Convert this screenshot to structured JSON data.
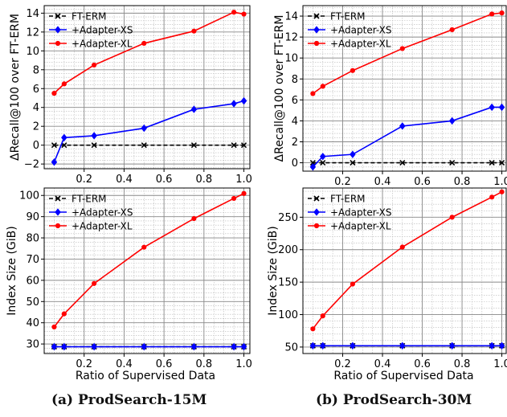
{
  "figure": {
    "captions": [
      "(a) ProdSearch-15M",
      "(b) ProdSearch-30M"
    ],
    "colors": {
      "ft_erm": "#000000",
      "adapter_xs": "#0000ff",
      "adapter_xl": "#ff0000"
    }
  },
  "chart_data": [
    {
      "type": "line",
      "id": "a-top",
      "title": "",
      "xlabel": "",
      "ylabel": "ΔRecall@100 over FT-ERM",
      "xlim": [
        0.0,
        1.03
      ],
      "ylim": [
        -2.5,
        14.8
      ],
      "xticks": [
        0.2,
        0.4,
        0.6,
        0.8,
        1.0
      ],
      "xtick_labels": [
        "0.2",
        "0.4",
        "0.6",
        "0.8",
        "1.0"
      ],
      "yticks": [
        -2,
        0,
        2,
        4,
        6,
        8,
        10,
        12,
        14
      ],
      "ytick_labels": [
        "−2",
        "0",
        "2",
        "4",
        "6",
        "8",
        "10",
        "12",
        "14"
      ],
      "grid": true,
      "legend": "top-left",
      "x": [
        0.05,
        0.1,
        0.25,
        0.5,
        0.75,
        0.95,
        1.0
      ],
      "series": [
        {
          "name": "FT-ERM",
          "color": "#000000",
          "marker": "x",
          "dash": true,
          "values": [
            0,
            0,
            0,
            0,
            0,
            0,
            0
          ]
        },
        {
          "name": "+Adapter-XS",
          "color": "#0000ff",
          "marker": "diamond",
          "dash": false,
          "values": [
            -1.8,
            0.8,
            1.0,
            1.8,
            3.8,
            4.4,
            4.7
          ]
        },
        {
          "name": "+Adapter-XL",
          "color": "#ff0000",
          "marker": "circle",
          "dash": false,
          "values": [
            5.5,
            6.5,
            8.5,
            10.8,
            12.1,
            14.1,
            13.9
          ]
        }
      ]
    },
    {
      "type": "line",
      "id": "b-top",
      "title": "",
      "xlabel": "",
      "ylabel": "ΔRecall@100 over FT-ERM",
      "xlim": [
        0.0,
        1.03
      ],
      "ylim": [
        -0.8,
        15.0
      ],
      "xticks": [
        0.2,
        0.4,
        0.6,
        0.8,
        1.0
      ],
      "xtick_labels": [
        "0.2",
        "0.4",
        "0.6",
        "0.8",
        "1.0"
      ],
      "yticks": [
        0,
        2,
        4,
        6,
        8,
        10,
        12,
        14
      ],
      "ytick_labels": [
        "0",
        "2",
        "4",
        "6",
        "8",
        "10",
        "12",
        "14"
      ],
      "grid": true,
      "legend": "top-left",
      "x": [
        0.05,
        0.1,
        0.25,
        0.5,
        0.75,
        0.95,
        1.0
      ],
      "series": [
        {
          "name": "FT-ERM",
          "color": "#000000",
          "marker": "x",
          "dash": true,
          "values": [
            0,
            0,
            0,
            0,
            0,
            0,
            0
          ]
        },
        {
          "name": "+Adapter-XS",
          "color": "#0000ff",
          "marker": "diamond",
          "dash": false,
          "values": [
            -0.4,
            0.6,
            0.8,
            3.5,
            4.0,
            5.3,
            5.3
          ]
        },
        {
          "name": "+Adapter-XL",
          "color": "#ff0000",
          "marker": "circle",
          "dash": false,
          "values": [
            6.6,
            7.3,
            8.8,
            10.9,
            12.7,
            14.2,
            14.3
          ]
        }
      ]
    },
    {
      "type": "line",
      "id": "a-bottom",
      "title": "",
      "xlabel": "Ratio of Supervised Data",
      "ylabel": "Index Size (GiB)",
      "xlim": [
        0.0,
        1.03
      ],
      "ylim": [
        25.5,
        103.5
      ],
      "xticks": [
        0.2,
        0.4,
        0.6,
        0.8,
        1.0
      ],
      "xtick_labels": [
        "0.2",
        "0.4",
        "0.6",
        "0.8",
        "1.0"
      ],
      "yticks": [
        30,
        40,
        50,
        60,
        70,
        80,
        90,
        100
      ],
      "ytick_labels": [
        "30",
        "40",
        "50",
        "60",
        "70",
        "80",
        "90",
        "100"
      ],
      "grid": true,
      "legend": "top-left",
      "x": [
        0.05,
        0.1,
        0.25,
        0.5,
        0.75,
        0.95,
        1.0
      ],
      "series": [
        {
          "name": "FT-ERM",
          "color": "#000000",
          "marker": "x",
          "dash": true,
          "values": [
            28.7,
            28.7,
            28.7,
            28.7,
            28.7,
            28.7,
            28.7
          ]
        },
        {
          "name": "+Adapter-XS",
          "color": "#0000ff",
          "marker": "diamond",
          "dash": false,
          "values": [
            28.7,
            28.7,
            28.7,
            28.7,
            28.7,
            28.7,
            28.7
          ]
        },
        {
          "name": "+Adapter-XL",
          "color": "#ff0000",
          "marker": "circle",
          "dash": false,
          "values": [
            38.0,
            44.2,
            58.5,
            75.6,
            89.1,
            98.6,
            100.9
          ]
        }
      ]
    },
    {
      "type": "line",
      "id": "b-bottom",
      "title": "",
      "xlabel": "Ratio of Supervised Data",
      "ylabel": "Index Size (GiB)",
      "xlim": [
        0.0,
        1.03
      ],
      "ylim": [
        40,
        295
      ],
      "xticks": [
        0.2,
        0.4,
        0.6,
        0.8,
        1.0
      ],
      "xtick_labels": [
        "0.2",
        "0.4",
        "0.6",
        "0.8",
        "1.0"
      ],
      "yticks": [
        50,
        100,
        150,
        200,
        250
      ],
      "ytick_labels": [
        "50",
        "100",
        "150",
        "200",
        "250"
      ],
      "grid": true,
      "legend": "top-left",
      "x": [
        0.05,
        0.1,
        0.25,
        0.5,
        0.75,
        0.95,
        1.0
      ],
      "series": [
        {
          "name": "FT-ERM",
          "color": "#000000",
          "marker": "x",
          "dash": true,
          "values": [
            52,
            52,
            52,
            52,
            52,
            52,
            52
          ]
        },
        {
          "name": "+Adapter-XS",
          "color": "#0000ff",
          "marker": "diamond",
          "dash": false,
          "values": [
            52,
            52,
            52,
            52,
            52,
            52,
            52
          ]
        },
        {
          "name": "+Adapter-XL",
          "color": "#ff0000",
          "marker": "circle",
          "dash": false,
          "values": [
            78,
            98,
            147,
            204,
            250,
            281,
            289
          ]
        }
      ]
    }
  ]
}
